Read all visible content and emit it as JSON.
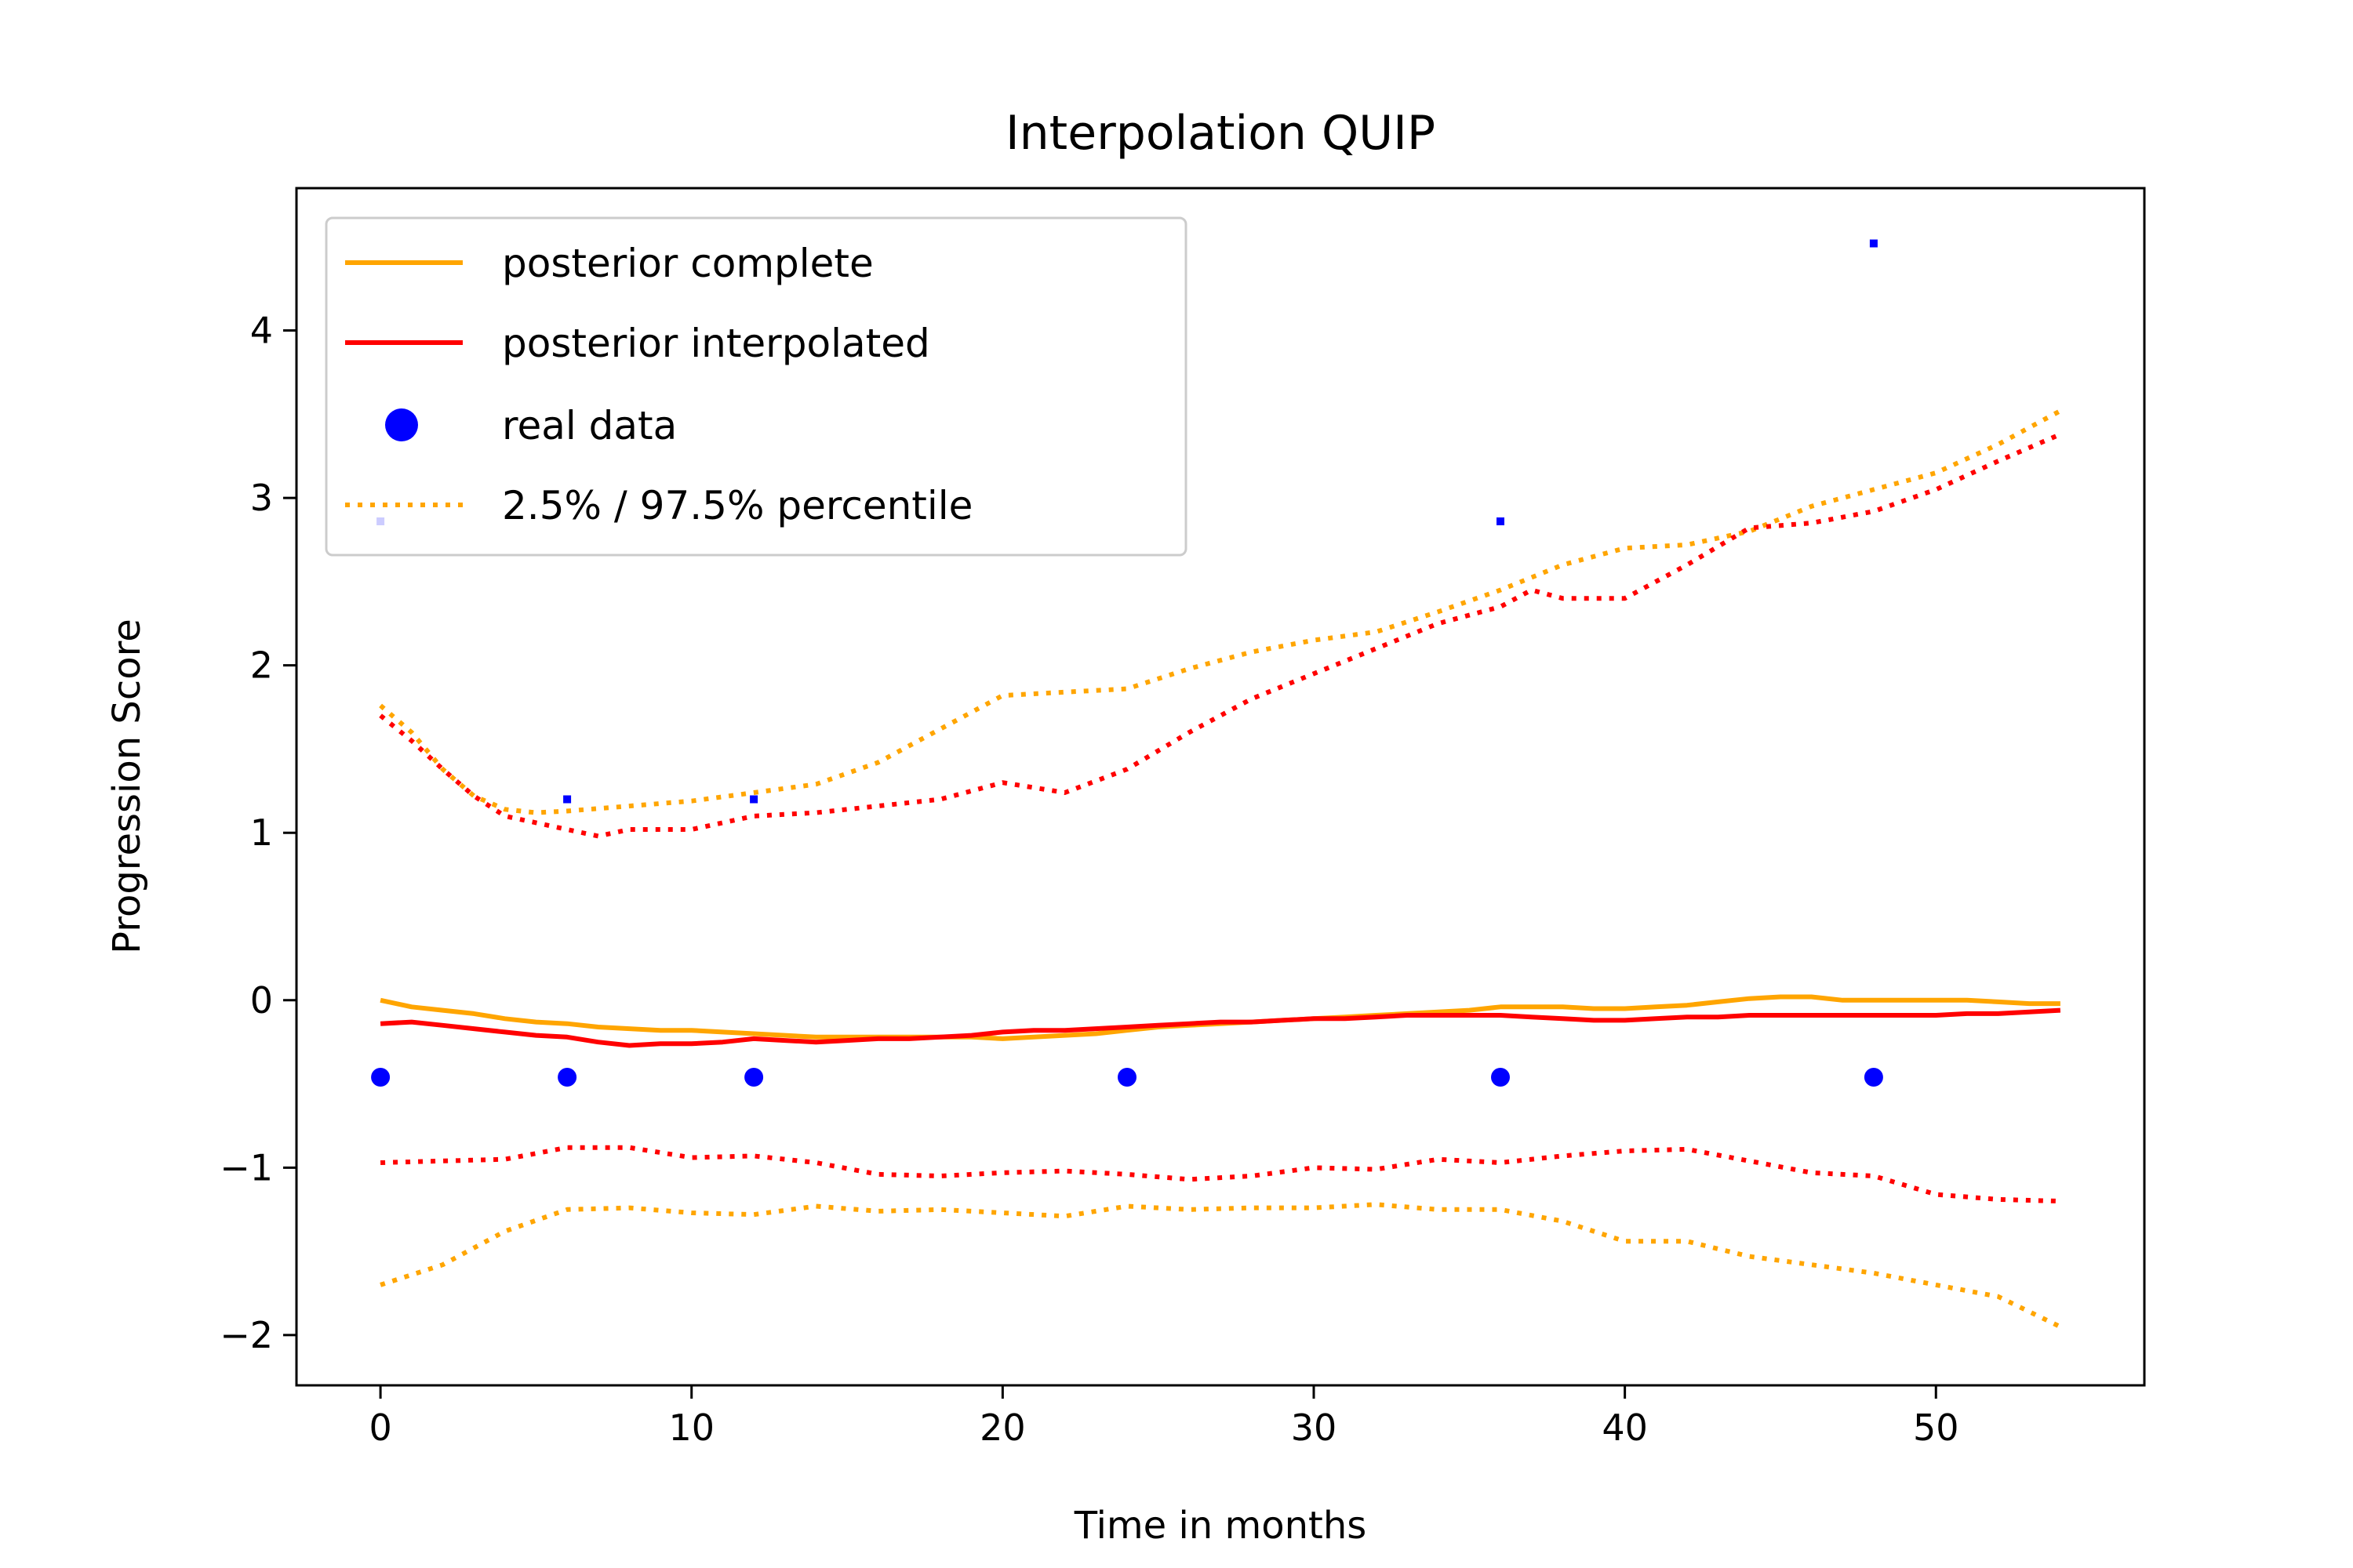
{
  "chart_data": {
    "type": "line",
    "title": "Interpolation QUIP",
    "xlabel": "Time in months",
    "ylabel": "Progression Score",
    "xlim": [
      -2.7,
      56.7
    ],
    "ylim": [
      -2.3,
      4.85
    ],
    "xticks": [
      0,
      10,
      20,
      30,
      40,
      50
    ],
    "yticks": [
      -2,
      -1,
      0,
      1,
      2,
      3,
      4
    ],
    "xtick_labels": [
      "0",
      "10",
      "20",
      "30",
      "40",
      "50"
    ],
    "ytick_labels": [
      "−2",
      "−1",
      "0",
      "1",
      "2",
      "3",
      "4"
    ],
    "grid": false,
    "legend_position": "top-left",
    "legend": [
      {
        "label": "posterior complete",
        "color": "#ffa500",
        "style": "solid"
      },
      {
        "label": "posterior interpolated",
        "color": "#ff0000",
        "style": "solid"
      },
      {
        "label": "real data",
        "color": "#0000ff",
        "style": "marker"
      },
      {
        "label": "2.5% / 97.5% percentile",
        "color": "#ffa500",
        "style": "dotted"
      }
    ],
    "series": [
      {
        "name": "posterior complete",
        "color": "#ffa500",
        "style": "solid",
        "x": [
          0,
          1,
          2,
          3,
          4,
          5,
          6,
          7,
          8,
          9,
          10,
          11,
          12,
          13,
          14,
          15,
          16,
          17,
          18,
          19,
          20,
          21,
          22,
          23,
          24,
          25,
          26,
          27,
          28,
          29,
          30,
          31,
          32,
          33,
          34,
          35,
          36,
          37,
          38,
          39,
          40,
          41,
          42,
          43,
          44,
          45,
          46,
          47,
          48,
          49,
          50,
          51,
          52,
          53,
          54
        ],
        "y": [
          0.0,
          -0.04,
          -0.06,
          -0.08,
          -0.11,
          -0.13,
          -0.14,
          -0.16,
          -0.17,
          -0.18,
          -0.18,
          -0.19,
          -0.2,
          -0.21,
          -0.22,
          -0.22,
          -0.22,
          -0.22,
          -0.22,
          -0.22,
          -0.23,
          -0.22,
          -0.21,
          -0.2,
          -0.18,
          -0.16,
          -0.15,
          -0.14,
          -0.13,
          -0.12,
          -0.11,
          -0.1,
          -0.09,
          -0.08,
          -0.07,
          -0.06,
          -0.04,
          -0.04,
          -0.04,
          -0.05,
          -0.05,
          -0.04,
          -0.03,
          -0.01,
          0.01,
          0.02,
          0.02,
          0.0,
          0.0,
          0.0,
          0.0,
          0.0,
          -0.01,
          -0.02,
          -0.02
        ]
      },
      {
        "name": "posterior interpolated",
        "color": "#ff0000",
        "style": "solid",
        "x": [
          0,
          1,
          2,
          3,
          4,
          5,
          6,
          7,
          8,
          9,
          10,
          11,
          12,
          13,
          14,
          15,
          16,
          17,
          18,
          19,
          20,
          21,
          22,
          23,
          24,
          25,
          26,
          27,
          28,
          29,
          30,
          31,
          32,
          33,
          34,
          35,
          36,
          37,
          38,
          39,
          40,
          41,
          42,
          43,
          44,
          45,
          46,
          47,
          48,
          49,
          50,
          51,
          52,
          53,
          54
        ],
        "y": [
          -0.14,
          -0.13,
          -0.15,
          -0.17,
          -0.19,
          -0.21,
          -0.22,
          -0.25,
          -0.27,
          -0.26,
          -0.26,
          -0.25,
          -0.23,
          -0.24,
          -0.25,
          -0.24,
          -0.23,
          -0.23,
          -0.22,
          -0.21,
          -0.19,
          -0.18,
          -0.18,
          -0.17,
          -0.16,
          -0.15,
          -0.14,
          -0.13,
          -0.13,
          -0.12,
          -0.11,
          -0.11,
          -0.1,
          -0.09,
          -0.09,
          -0.09,
          -0.09,
          -0.1,
          -0.11,
          -0.12,
          -0.12,
          -0.11,
          -0.1,
          -0.1,
          -0.09,
          -0.09,
          -0.09,
          -0.09,
          -0.09,
          -0.09,
          -0.09,
          -0.08,
          -0.08,
          -0.07,
          -0.06
        ]
      },
      {
        "name": "2.5% / 97.5% percentile",
        "color": "#ffa500",
        "style": "dotted",
        "x": [
          0,
          1,
          2,
          3,
          4,
          5,
          6,
          8,
          10,
          12,
          14,
          16,
          18,
          20,
          22,
          24,
          26,
          28,
          30,
          32,
          34,
          36,
          38,
          40,
          42,
          44,
          46,
          48,
          50,
          52,
          54
        ],
        "y": [
          1.76,
          1.6,
          1.38,
          1.22,
          1.14,
          1.12,
          1.13,
          1.16,
          1.19,
          1.24,
          1.29,
          1.42,
          1.62,
          1.82,
          1.84,
          1.86,
          1.98,
          2.08,
          2.15,
          2.2,
          2.32,
          2.45,
          2.6,
          2.7,
          2.72,
          2.8,
          2.95,
          3.05,
          3.15,
          3.32,
          3.52
        ]
      },
      {
        "name": "",
        "color": "#ff0000",
        "style": "dotted",
        "x": [
          0,
          1,
          2,
          3,
          4,
          5,
          6,
          7,
          8,
          10,
          12,
          14,
          16,
          18,
          20,
          22,
          24,
          26,
          28,
          30,
          32,
          34,
          36,
          37,
          38,
          40,
          42,
          44,
          46,
          48,
          50,
          52,
          54
        ],
        "y": [
          1.7,
          1.55,
          1.38,
          1.22,
          1.1,
          1.06,
          1.02,
          0.98,
          1.02,
          1.02,
          1.1,
          1.12,
          1.16,
          1.2,
          1.3,
          1.24,
          1.38,
          1.6,
          1.8,
          1.95,
          2.1,
          2.25,
          2.35,
          2.45,
          2.4,
          2.4,
          2.6,
          2.82,
          2.85,
          2.92,
          3.05,
          3.22,
          3.38
        ]
      },
      {
        "name": "",
        "color": "#ff0000",
        "style": "dotted",
        "x": [
          0,
          2,
          4,
          6,
          8,
          10,
          12,
          14,
          16,
          18,
          20,
          22,
          24,
          26,
          28,
          30,
          32,
          34,
          36,
          38,
          40,
          42,
          44,
          46,
          48,
          50,
          52,
          54
        ],
        "y": [
          -0.97,
          -0.96,
          -0.95,
          -0.88,
          -0.88,
          -0.94,
          -0.93,
          -0.97,
          -1.04,
          -1.05,
          -1.03,
          -1.02,
          -1.04,
          -1.07,
          -1.05,
          -1.0,
          -1.01,
          -0.95,
          -0.97,
          -0.93,
          -0.9,
          -0.89,
          -0.96,
          -1.03,
          -1.05,
          -1.16,
          -1.19,
          -1.2
        ]
      },
      {
        "name": "",
        "color": "#ffa500",
        "style": "dotted",
        "x": [
          0,
          2,
          4,
          6,
          8,
          10,
          12,
          14,
          16,
          18,
          20,
          22,
          24,
          26,
          28,
          30,
          32,
          34,
          36,
          38,
          40,
          42,
          44,
          46,
          48,
          50,
          52,
          54
        ],
        "y": [
          -1.7,
          -1.58,
          -1.38,
          -1.25,
          -1.24,
          -1.27,
          -1.28,
          -1.23,
          -1.26,
          -1.25,
          -1.27,
          -1.29,
          -1.23,
          -1.25,
          -1.24,
          -1.24,
          -1.22,
          -1.25,
          -1.25,
          -1.32,
          -1.44,
          -1.44,
          -1.53,
          -1.58,
          -1.63,
          -1.7,
          -1.77,
          -1.95
        ]
      }
    ],
    "real_data": {
      "name": "real data",
      "color": "#0000ff",
      "x": [
        0,
        6,
        12,
        24,
        36,
        48
      ],
      "y": [
        -0.46,
        -0.46,
        -0.46,
        -0.46,
        -0.46,
        -0.46
      ]
    },
    "small_points": {
      "color": "#0000ff",
      "x": [
        0,
        6,
        12,
        36,
        48
      ],
      "y": [
        2.86,
        1.2,
        1.2,
        2.86,
        4.52
      ]
    }
  }
}
